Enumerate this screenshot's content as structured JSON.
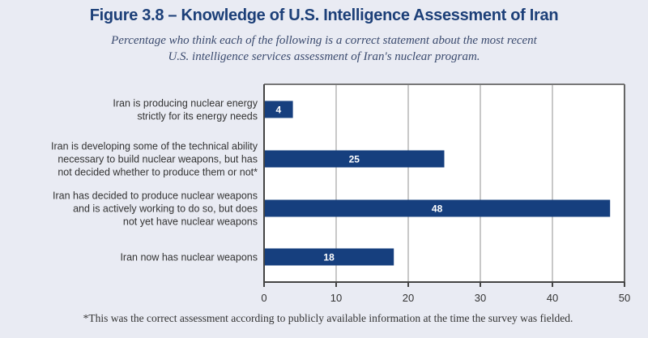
{
  "chart_data": {
    "type": "bar",
    "orientation": "horizontal",
    "title": "Figure 3.8 – Knowledge of U.S. Intelligence Assessment of Iran",
    "subtitle": [
      "Percentage who think each of the following is a correct statement about the most recent",
      "U.S. intelligence services assessment of Iran's nuclear program."
    ],
    "categories": [
      [
        "Iran is producing nuclear energy",
        "strictly for its energy needs"
      ],
      [
        "Iran is developing some of the technical ability",
        "necessary to build nuclear weapons, but has",
        "not decided whether to produce them or not*"
      ],
      [
        "Iran has decided to produce nuclear weapons",
        "and is actively working to do so, but does",
        "not yet have nuclear weapons"
      ],
      [
        "Iran now has nuclear weapons"
      ]
    ],
    "values": [
      4,
      25,
      48,
      18
    ],
    "data_labels": [
      "4",
      "25",
      "48",
      "18"
    ],
    "xlabel": "",
    "ylabel": "",
    "xlim": [
      0,
      50
    ],
    "xticks": [
      0,
      10,
      20,
      30,
      40,
      50
    ],
    "xtick_labels": [
      "0",
      "10",
      "20",
      "30",
      "40",
      "50"
    ],
    "grid": true,
    "legend": "none",
    "footnote": "*This was the correct assessment according to publicly available information at the time the survey was fielded.",
    "colors": {
      "bar": "#163f7e",
      "title": "#1c3f78",
      "grid": "#c8c8c8",
      "axis": "#444444",
      "background": "#e9ebf3",
      "plot_background": "#ffffff"
    }
  }
}
